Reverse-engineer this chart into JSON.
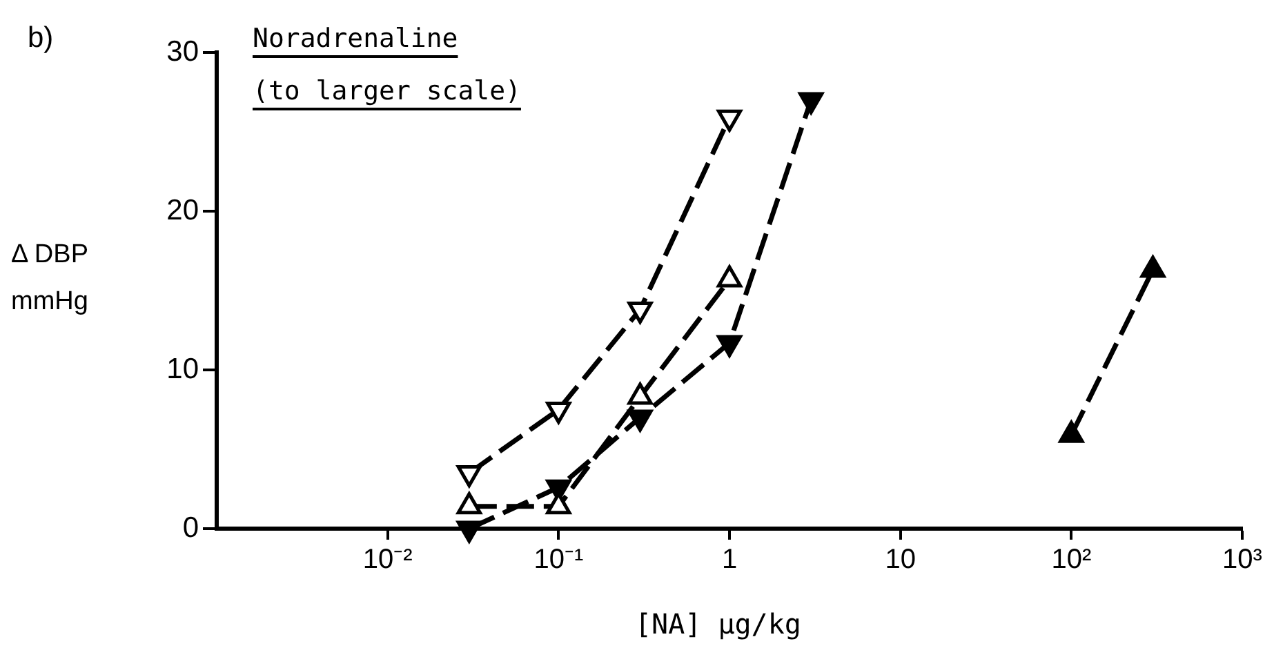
{
  "chart_data": {
    "type": "line",
    "title": "Noradrenaline",
    "subtitle": "(to larger scale)",
    "xlabel": "[NA] μg/kg",
    "ylabel": "Δ DBP mmHg",
    "annotations": [
      "b)"
    ],
    "log": "x",
    "xlim": [
      0.001,
      1000
    ],
    "ylim": [
      0,
      30
    ],
    "xticks": [
      {
        "value": 0.01,
        "label": "10⁻²"
      },
      {
        "value": 0.1,
        "label": "10⁻¹"
      },
      {
        "value": 1,
        "label": "1"
      },
      {
        "value": 10,
        "label": "10"
      },
      {
        "value": 100,
        "label": "10²"
      },
      {
        "value": 1000,
        "label": "10³"
      }
    ],
    "yticks": [
      0,
      10,
      20,
      30
    ],
    "grid": false,
    "legend": false,
    "line_style": "dashed",
    "series": [
      {
        "color": "#000000",
        "colors": [
          "#ffffff",
          "#ffffff",
          "#ffffff",
          "#ffffff"
        ],
        "marker": "triangle-down",
        "x": [
          0.03,
          0.1,
          0.3,
          1
        ],
        "values": [
          3.5,
          7.5,
          13.8,
          25.9
        ]
      },
      {
        "color": "#000000",
        "colors": [
          "#ffffff",
          "#ffffff",
          "#ffffff",
          "#ffffff"
        ],
        "marker": "triangle",
        "x": [
          0.03,
          0.1,
          0.3,
          1
        ],
        "values": [
          1.4,
          1.4,
          8.3,
          15.7
        ]
      },
      {
        "color": "#000000",
        "marker": "triangle-down",
        "x": [
          0.03,
          0.1,
          0.3,
          1,
          3
        ],
        "values": [
          0,
          2.6,
          7,
          11.7,
          27
        ]
      },
      {
        "color": "#000000",
        "marker": "triangle",
        "x": [
          100,
          300
        ],
        "values": [
          5.9,
          16.3
        ]
      }
    ]
  }
}
